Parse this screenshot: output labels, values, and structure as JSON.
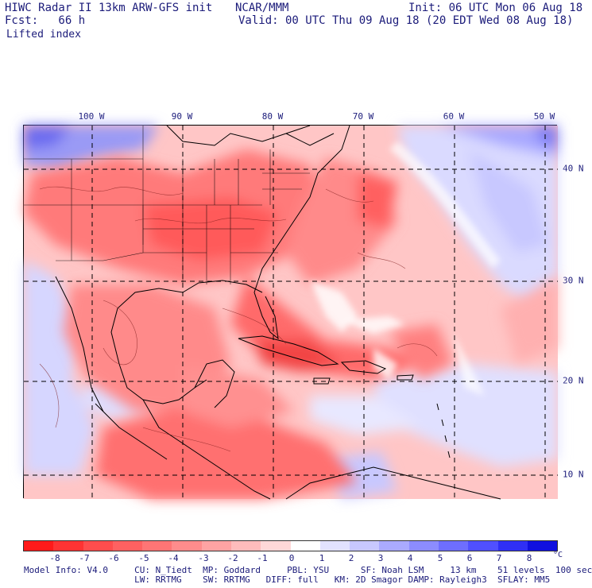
{
  "header": {
    "line1_left": "HIWC Radar II 13km ARW-GFS init",
    "line1_mid": "NCAR/MMM",
    "line1_right": "Init: 06 UTC Mon 06 Aug 18",
    "fcst_label": "Fcst:   66 h",
    "valid": "Valid: 00 UTC Thu 09 Aug 18 (20 EDT Wed 08 Aug 18)",
    "field": "Lifted index"
  },
  "longitude_labels": [
    "100 W",
    "90 W",
    "80 W",
    "70 W",
    "60 W",
    "50 W"
  ],
  "latitude_labels": [
    "40 N",
    "30 N",
    "20 N",
    "10 N"
  ],
  "colorbar": {
    "ticks": [
      "-8",
      "-7",
      "-6",
      "-5",
      "-4",
      "-3",
      "-2",
      "-1",
      "0",
      "1",
      "2",
      "3",
      "4",
      "5",
      "6",
      "7",
      "8"
    ],
    "unit": "°C",
    "colors": [
      "#ff1a1a",
      "#ff3333",
      "#ff4d4d",
      "#ff6161",
      "#ff7575",
      "#ff8c8c",
      "#ffa3a3",
      "#ffbcbc",
      "#ffd8d8",
      "#ffffff",
      "#e2e2ff",
      "#c8c8ff",
      "#aaaaff",
      "#8c8cff",
      "#6e6eff",
      "#5050ff",
      "#2f2ff5",
      "#1010e0"
    ]
  },
  "model_info": {
    "line1": "Model Info: V4.0     CU: N_Tiedt  MP: Goddard     PBL: YSU      SF: Noah LSM     13 km    51 levels  100 sec",
    "line2": "                     LW: RRTMG    SW: RRTMG   DIFF: full   KM: 2D Smagor DAMP: Rayleigh3  SFLAY: MM5"
  },
  "colors": {
    "text": "#1b1b7a",
    "unstable_strong": "#f03a3a",
    "unstable_mid": "#ff8080",
    "unstable_weak": "#ffc8c8",
    "stable_weak": "#dcdcff",
    "stable_strong": "#5a5aee"
  }
}
